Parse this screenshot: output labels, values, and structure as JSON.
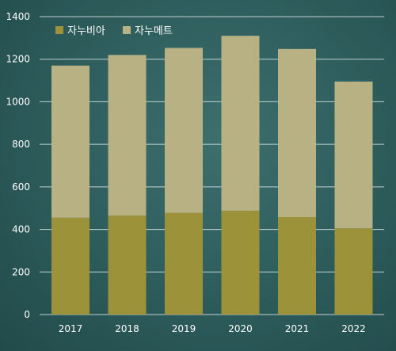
{
  "chart_data": {
    "type": "bar",
    "stacked": true,
    "categories": [
      "2017",
      "2018",
      "2019",
      "2020",
      "2021",
      "2022"
    ],
    "series": [
      {
        "name": "자누비아",
        "values": [
          455,
          465,
          478,
          488,
          458,
          405
        ],
        "color": "#9c9239"
      },
      {
        "name": "자누메트",
        "values": [
          715,
          755,
          775,
          822,
          790,
          690
        ],
        "color": "#b8b184"
      }
    ],
    "ylim": [
      0,
      1400
    ],
    "yticks": [
      0,
      200,
      400,
      600,
      800,
      1000,
      1200,
      1400
    ],
    "grid": true,
    "legend_position": "top-left"
  },
  "colors": {
    "axis_text": "#ffffff",
    "grid": "#d9e6e3"
  }
}
